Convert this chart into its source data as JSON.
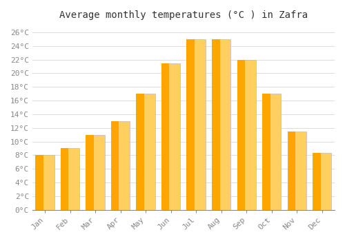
{
  "title": "Average monthly temperatures (°C ) in Zafra",
  "months": [
    "Jan",
    "Feb",
    "Mar",
    "Apr",
    "May",
    "Jun",
    "Jul",
    "Aug",
    "Sep",
    "Oct",
    "Nov",
    "Dec"
  ],
  "temperatures": [
    8,
    9,
    11,
    13,
    17,
    21.5,
    25,
    25,
    22,
    17,
    11.5,
    8.3
  ],
  "bar_color_main": "#FFA500",
  "bar_color_light": "#FFD060",
  "bar_edge_color": "#BBBBBB",
  "background_color": "#FFFFFF",
  "grid_color": "#DDDDDD",
  "ylim": [
    0,
    27
  ],
  "yticks": [
    0,
    2,
    4,
    6,
    8,
    10,
    12,
    14,
    16,
    18,
    20,
    22,
    24,
    26
  ],
  "ytick_labels": [
    "0°C",
    "2°C",
    "4°C",
    "6°C",
    "8°C",
    "10°C",
    "12°C",
    "14°C",
    "16°C",
    "18°C",
    "20°C",
    "22°C",
    "24°C",
    "26°C"
  ],
  "title_fontsize": 10,
  "tick_fontsize": 8,
  "tick_font_color": "#888888",
  "font_family": "monospace"
}
